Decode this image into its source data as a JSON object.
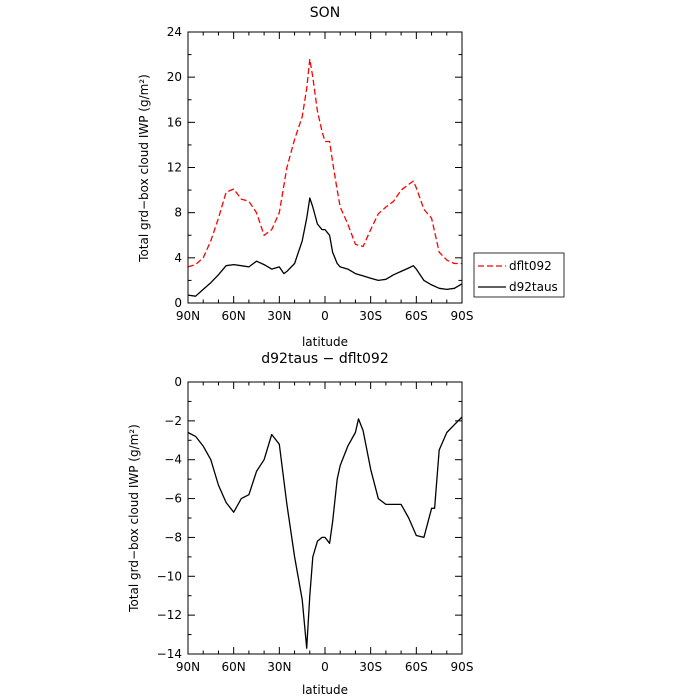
{
  "chart_data": [
    {
      "type": "line",
      "title": "SON",
      "xlabel": "latitude",
      "ylabel": "Total grd−box cloud IWP (g/m²)",
      "x_ticks": [
        90,
        60,
        30,
        0,
        -30,
        -60,
        -90
      ],
      "x_tick_labels": [
        "90N",
        "60N",
        "30N",
        "0",
        "30S",
        "60S",
        "90S"
      ],
      "xlim": [
        90,
        -90
      ],
      "ylim": [
        0,
        24
      ],
      "y_ticks": [
        0,
        4,
        8,
        12,
        16,
        20,
        24
      ],
      "y_tick_labels": [
        "0",
        "4",
        "8",
        "12",
        "16",
        "20",
        "24"
      ],
      "legend": "right",
      "series": [
        {
          "name": "dflt092",
          "color": "#ff0000",
          "dash": "dashed",
          "x": [
            90,
            85,
            80,
            75,
            70,
            65,
            60,
            55,
            50,
            45,
            40,
            35,
            30,
            25,
            20,
            15,
            12,
            10,
            8,
            5,
            2,
            0,
            -3,
            -5,
            -8,
            -10,
            -15,
            -20,
            -25,
            -30,
            -35,
            -40,
            -45,
            -50,
            -55,
            -58,
            -60,
            -65,
            -70,
            -75,
            -80,
            -85,
            -90
          ],
          "values": [
            3.2,
            3.4,
            4.0,
            5.5,
            7.5,
            9.8,
            10.1,
            9.2,
            9.0,
            8.0,
            6.0,
            6.5,
            8.0,
            12.0,
            14.5,
            16.5,
            19.0,
            21.6,
            20.0,
            17.0,
            15.2,
            14.3,
            14.3,
            12.5,
            10.0,
            8.5,
            7.0,
            5.2,
            5.0,
            6.5,
            7.9,
            8.5,
            9.0,
            10.0,
            10.5,
            10.8,
            10.2,
            8.3,
            7.5,
            4.5,
            3.8,
            3.5,
            3.5
          ]
        },
        {
          "name": "d92taus",
          "color": "#000000",
          "dash": "solid",
          "x": [
            90,
            85,
            80,
            75,
            70,
            65,
            60,
            55,
            50,
            45,
            40,
            35,
            30,
            27,
            25,
            20,
            15,
            12,
            10,
            8,
            5,
            2,
            0,
            -3,
            -5,
            -8,
            -10,
            -15,
            -20,
            -25,
            -30,
            -35,
            -40,
            -45,
            -50,
            -55,
            -58,
            -60,
            -65,
            -70,
            -75,
            -80,
            -85,
            -90
          ],
          "values": [
            0.7,
            0.6,
            1.2,
            1.8,
            2.5,
            3.3,
            3.4,
            3.3,
            3.2,
            3.7,
            3.4,
            3.0,
            3.2,
            2.6,
            2.8,
            3.5,
            5.5,
            7.5,
            9.3,
            8.5,
            7.0,
            6.5,
            6.5,
            6.0,
            4.5,
            3.5,
            3.2,
            3.0,
            2.6,
            2.4,
            2.2,
            2.0,
            2.1,
            2.5,
            2.8,
            3.1,
            3.3,
            3.0,
            2.0,
            1.6,
            1.3,
            1.2,
            1.3,
            1.7
          ]
        }
      ]
    },
    {
      "type": "line",
      "title": "d92taus − dflt092",
      "xlabel": "latitude",
      "ylabel": "Total grd−box cloud IWP (g/m²)",
      "x_ticks": [
        90,
        60,
        30,
        0,
        -30,
        -60,
        -90
      ],
      "x_tick_labels": [
        "90N",
        "60N",
        "30N",
        "0",
        "30S",
        "60S",
        "90S"
      ],
      "xlim": [
        90,
        -90
      ],
      "ylim": [
        -14,
        0
      ],
      "y_ticks": [
        -14,
        -12,
        -10,
        -8,
        -6,
        -4,
        -2,
        0
      ],
      "y_tick_labels": [
        "−14",
        "−12",
        "−10",
        "−8",
        "−6",
        "−4",
        "−2",
        "0"
      ],
      "series": [
        {
          "color": "#000000",
          "dash": "solid",
          "x": [
            90,
            85,
            80,
            75,
            70,
            65,
            60,
            55,
            50,
            45,
            40,
            35,
            30,
            25,
            20,
            15,
            12,
            10,
            8,
            5,
            2,
            0,
            -3,
            -5,
            -8,
            -10,
            -15,
            -20,
            -22,
            -25,
            -30,
            -35,
            -40,
            -45,
            -50,
            -55,
            -60,
            -65,
            -70,
            -72,
            -75,
            -80,
            -85,
            -90
          ],
          "values": [
            -2.6,
            -2.8,
            -3.3,
            -4.0,
            -5.3,
            -6.2,
            -6.7,
            -6.0,
            -5.8,
            -4.6,
            -4.0,
            -2.7,
            -3.2,
            -6.3,
            -9.0,
            -11.2,
            -13.7,
            -11.0,
            -9.0,
            -8.2,
            -8.0,
            -8.0,
            -8.3,
            -7.2,
            -5.0,
            -4.3,
            -3.3,
            -2.6,
            -1.9,
            -2.5,
            -4.5,
            -6.0,
            -6.3,
            -6.3,
            -6.3,
            -7.0,
            -7.9,
            -8.0,
            -6.5,
            -6.5,
            -3.5,
            -2.6,
            -2.2,
            -1.8
          ]
        }
      ]
    }
  ]
}
